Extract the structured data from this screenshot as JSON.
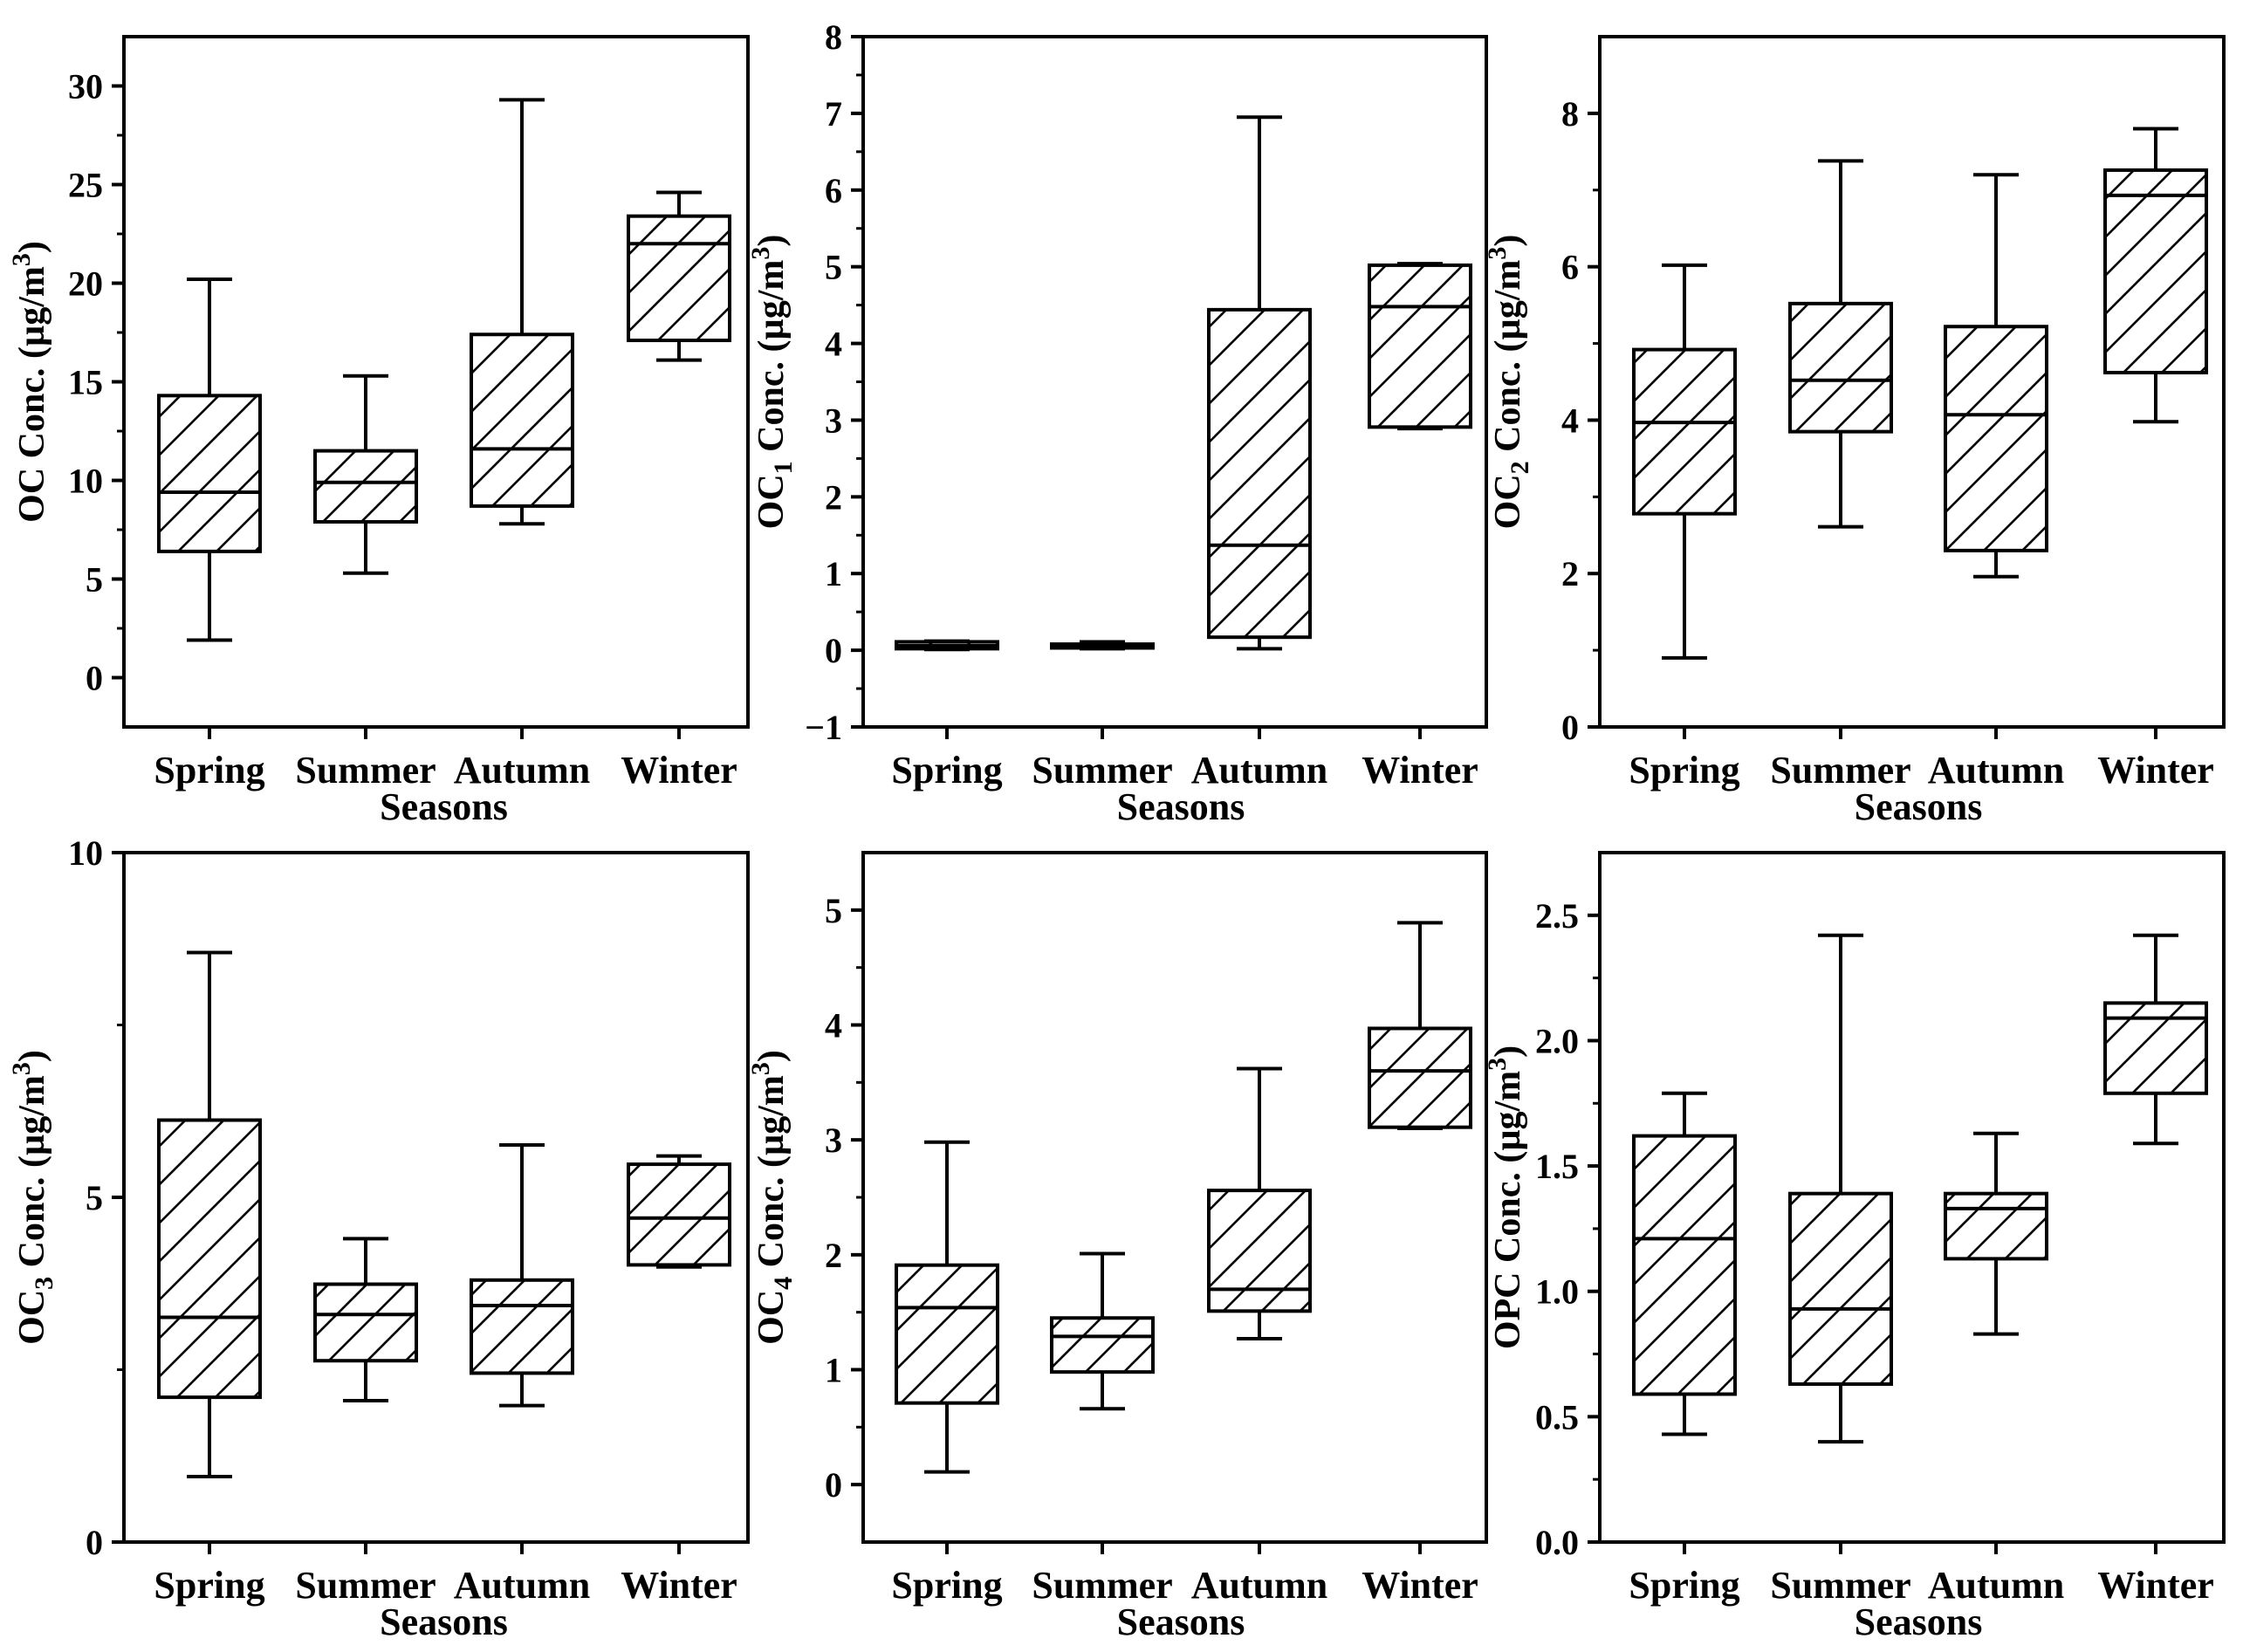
{
  "chart_data": [
    {
      "type": "boxplot",
      "ylabel_parts": {
        "pre": "OC",
        "sub": "",
        "post": " Conc. (µg/m",
        "sup": "3",
        "end": ")"
      },
      "xlabel": "Seasons",
      "categories": [
        "Spring",
        "Summer",
        "Autumn",
        "Winter"
      ],
      "ylim": [
        -2.5,
        32.5
      ],
      "yticks": [
        0,
        5,
        10,
        15,
        20,
        25,
        30
      ],
      "ytick_labels": [
        "0",
        "5",
        "10",
        "15",
        "20",
        "25",
        "30"
      ],
      "boxes": [
        {
          "min": 1.9,
          "q1": 6.4,
          "median": 9.4,
          "q3": 14.3,
          "max": 20.2
        },
        {
          "min": 5.3,
          "q1": 7.9,
          "median": 9.9,
          "q3": 11.5,
          "max": 15.3
        },
        {
          "min": 7.8,
          "q1": 8.7,
          "median": 11.6,
          "q3": 17.4,
          "max": 29.3
        },
        {
          "min": 16.1,
          "q1": 17.1,
          "median": 22.0,
          "q3": 23.4,
          "max": 24.6
        }
      ]
    },
    {
      "type": "boxplot",
      "ylabel_parts": {
        "pre": "OC",
        "sub": "1",
        "post": " Conc. (µg/m",
        "sup": "3",
        "end": ")"
      },
      "xlabel": "Seasons",
      "categories": [
        "Spring",
        "Summer",
        "Autumn",
        "Winter"
      ],
      "ylim": [
        -1,
        8
      ],
      "yticks": [
        -1,
        0,
        1,
        2,
        3,
        4,
        5,
        6,
        7,
        8
      ],
      "ytick_labels": [
        "−1",
        "0",
        "1",
        "2",
        "3",
        "4",
        "5",
        "6",
        "7",
        "8"
      ],
      "boxes": [
        {
          "min": 0.01,
          "q1": 0.02,
          "median": 0.06,
          "q3": 0.11,
          "max": 0.12
        },
        {
          "min": 0.02,
          "q1": 0.03,
          "median": 0.05,
          "q3": 0.08,
          "max": 0.11
        },
        {
          "min": 0.02,
          "q1": 0.17,
          "median": 1.37,
          "q3": 4.44,
          "max": 6.95
        },
        {
          "min": 2.89,
          "q1": 2.91,
          "median": 4.48,
          "q3": 5.02,
          "max": 5.04
        }
      ]
    },
    {
      "type": "boxplot",
      "ylabel_parts": {
        "pre": "OC",
        "sub": "2",
        "post": " Conc. (µg/m",
        "sup": "3",
        "end": ")"
      },
      "xlabel": "Seasons",
      "categories": [
        "Spring",
        "Summer",
        "Autumn",
        "Winter"
      ],
      "ylim": [
        0,
        9
      ],
      "yticks": [
        0,
        2,
        4,
        6,
        8
      ],
      "ytick_labels": [
        "0",
        "2",
        "4",
        "6",
        "8"
      ],
      "boxes": [
        {
          "min": 0.9,
          "q1": 2.78,
          "median": 3.97,
          "q3": 4.92,
          "max": 6.02
        },
        {
          "min": 2.61,
          "q1": 3.85,
          "median": 4.52,
          "q3": 5.52,
          "max": 7.38
        },
        {
          "min": 1.96,
          "q1": 2.3,
          "median": 4.07,
          "q3": 5.22,
          "max": 7.2
        },
        {
          "min": 3.98,
          "q1": 4.62,
          "median": 6.93,
          "q3": 7.26,
          "max": 7.8
        }
      ]
    },
    {
      "type": "boxplot",
      "ylabel_parts": {
        "pre": "OC",
        "sub": "3",
        "post": " Conc. (µg/m",
        "sup": "3",
        "end": ")"
      },
      "xlabel": "Seasons",
      "categories": [
        "Spring",
        "Summer",
        "Autumn",
        "Winter"
      ],
      "ylim": [
        0,
        10
      ],
      "yticks": [
        0,
        5,
        10
      ],
      "ytick_labels": [
        "0",
        "5",
        "10"
      ],
      "boxes": [
        {
          "min": 0.95,
          "q1": 2.1,
          "median": 3.26,
          "q3": 6.12,
          "max": 8.55
        },
        {
          "min": 2.05,
          "q1": 2.63,
          "median": 3.3,
          "q3": 3.74,
          "max": 4.4
        },
        {
          "min": 1.98,
          "q1": 2.45,
          "median": 3.43,
          "q3": 3.8,
          "max": 5.76
        },
        {
          "min": 3.99,
          "q1": 4.02,
          "median": 4.7,
          "q3": 5.48,
          "max": 5.6
        }
      ]
    },
    {
      "type": "boxplot",
      "ylabel_parts": {
        "pre": "OC",
        "sub": "4",
        "post": " Conc. (µg/m",
        "sup": "3",
        "end": ")"
      },
      "xlabel": "Seasons",
      "categories": [
        "Spring",
        "Summer",
        "Autumn",
        "Winter"
      ],
      "ylim": [
        -0.5,
        5.5
      ],
      "yticks": [
        0,
        1,
        2,
        3,
        4,
        5
      ],
      "ytick_labels": [
        "0",
        "1",
        "2",
        "3",
        "4",
        "5"
      ],
      "boxes": [
        {
          "min": 0.11,
          "q1": 0.71,
          "median": 1.54,
          "q3": 1.91,
          "max": 2.98
        },
        {
          "min": 0.66,
          "q1": 0.98,
          "median": 1.29,
          "q3": 1.45,
          "max": 2.01
        },
        {
          "min": 1.27,
          "q1": 1.51,
          "median": 1.7,
          "q3": 2.56,
          "max": 3.62
        },
        {
          "min": 3.1,
          "q1": 3.11,
          "median": 3.6,
          "q3": 3.97,
          "max": 4.89
        }
      ]
    },
    {
      "type": "boxplot",
      "ylabel_parts": {
        "pre": "OPC",
        "sub": "",
        "post": " Conc. (µg/m",
        "sup": "3",
        "end": ")"
      },
      "xlabel": "Seasons",
      "categories": [
        "Spring",
        "Summer",
        "Autumn",
        "Winter"
      ],
      "ylim": [
        0,
        2.75
      ],
      "yticks": [
        0,
        0.5,
        1.0,
        1.5,
        2.0,
        2.5
      ],
      "ytick_labels": [
        "0.0",
        "0.5",
        "1.0",
        "1.5",
        "2.0",
        "2.5"
      ],
      "boxes": [
        {
          "min": 0.43,
          "q1": 0.59,
          "median": 1.21,
          "q3": 1.62,
          "max": 1.79
        },
        {
          "min": 0.4,
          "q1": 0.63,
          "median": 0.93,
          "q3": 1.39,
          "max": 2.42
        },
        {
          "min": 0.83,
          "q1": 1.13,
          "median": 1.33,
          "q3": 1.39,
          "max": 1.63
        },
        {
          "min": 1.59,
          "q1": 1.79,
          "median": 2.09,
          "q3": 2.15,
          "max": 2.42
        }
      ]
    }
  ]
}
